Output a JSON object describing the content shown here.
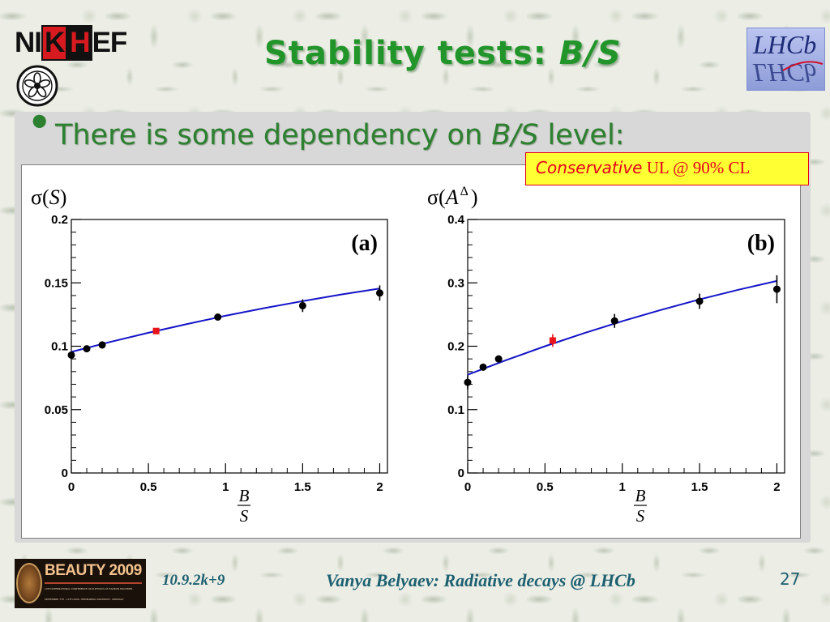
{
  "header": {
    "logo_left": {
      "parts": [
        "NI",
        "K",
        "H",
        "EF"
      ]
    },
    "title": {
      "text": "Stability tests: ",
      "italic": "B/S"
    },
    "logo_right": {
      "text": "LHCb"
    }
  },
  "bullet": {
    "symbol": "•",
    "text": "There is some dependency on ",
    "italic": "B/S",
    "text_end": " level:"
  },
  "note_box": {
    "italic": "Conservative",
    "text": " UL @ 90% CL"
  },
  "chart_data": [
    {
      "type": "scatter",
      "panel_label": "(a)",
      "ylabel": {
        "prefix": "σ(",
        "symbol": "S",
        "suffix": ")"
      },
      "xlabel": {
        "numerator": "B",
        "denominator": "S"
      },
      "xlim": [
        0,
        2.05
      ],
      "ylim": [
        0,
        0.2
      ],
      "xticks": [
        0,
        0.5,
        1,
        1.5,
        2
      ],
      "xtick_labels": [
        "0",
        "0.5",
        "1",
        "1.5",
        "2"
      ],
      "yticks": [
        0,
        0.05,
        0.1,
        0.15,
        0.2
      ],
      "ytick_labels": [
        "0",
        "0.05",
        "0.1",
        "0.15",
        "0.2"
      ],
      "grid": false,
      "legend": "none",
      "series": [
        {
          "marker": "circle",
          "color": "#000000",
          "x": [
            0,
            0.1,
            0.2,
            0.95,
            1.5,
            2
          ],
          "y": [
            0.093,
            0.098,
            0.101,
            0.123,
            0.132,
            0.142
          ],
          "yerr": [
            0.002,
            0.002,
            0.002,
            0.002,
            0.005,
            0.006
          ]
        },
        {
          "marker": "square",
          "color": "#e8141a",
          "x": [
            0.55
          ],
          "y": [
            0.112
          ],
          "yerr": [
            0.002
          ]
        }
      ],
      "fit": {
        "color": "#1414c8",
        "x": [
          0,
          0.25,
          0.5,
          0.75,
          1,
          1.25,
          1.5,
          1.75,
          2
        ],
        "y": [
          0.0955,
          0.1033,
          0.1106,
          0.1175,
          0.124,
          0.13,
          0.1356,
          0.1408,
          0.1455
        ]
      }
    },
    {
      "type": "scatter",
      "panel_label": "(b)",
      "ylabel": {
        "prefix": "σ(",
        "symbol": "A",
        "superscript": "Δ",
        "suffix": ")"
      },
      "xlabel": {
        "numerator": "B",
        "denominator": "S"
      },
      "xlim": [
        0,
        2.05
      ],
      "ylim": [
        0,
        0.4
      ],
      "xticks": [
        0,
        0.5,
        1,
        1.5,
        2
      ],
      "xtick_labels": [
        "0",
        "0.5",
        "1",
        "1.5",
        "2"
      ],
      "yticks": [
        0,
        0.1,
        0.2,
        0.3,
        0.4
      ],
      "ytick_labels": [
        "0",
        "0.1",
        "0.2",
        "0.3",
        "0.4"
      ],
      "grid": false,
      "legend": "none",
      "series": [
        {
          "marker": "circle",
          "color": "#000000",
          "x": [
            0,
            0.1,
            0.2,
            0.95,
            1.5,
            2
          ],
          "y": [
            0.143,
            0.167,
            0.18,
            0.24,
            0.271,
            0.29
          ],
          "yerr": [
            0.011,
            0.005,
            0.005,
            0.011,
            0.012,
            0.022
          ]
        },
        {
          "marker": "square",
          "color": "#e8141a",
          "x": [
            0.55
          ],
          "y": [
            0.209
          ],
          "yerr": [
            0.01
          ]
        }
      ],
      "fit": {
        "color": "#1414c8",
        "x": [
          0,
          0.25,
          0.5,
          0.75,
          1,
          1.25,
          1.5,
          1.75,
          2
        ],
        "y": [
          0.155,
          0.1781,
          0.2,
          0.2203,
          0.2395,
          0.2573,
          0.2739,
          0.2891,
          0.303
        ]
      }
    }
  ],
  "footer": {
    "conference_logo": {
      "title": "BEAUTY 2009",
      "line1": "12TH INTERNATIONAL CONFERENCE ON B-PHYSICS AT HADRON MACHINES",
      "line2": "SEPTEMBER 7TH - 11TH 2009, HEIDELBERG UNIVERSITY, GERMANY"
    },
    "date": "10.9.2k+9",
    "talk": "Vanya Belyaev: Radiative decays @ LHCb",
    "page_number": "27"
  },
  "colors": {
    "title_green": "#22952a",
    "bullet_green": "#2d8030",
    "note_red": "#e4001b",
    "note_bg": "#ffff33",
    "footer_text": "#1d6070",
    "fit_blue": "#1414c8",
    "highlight_red": "#e8141a"
  }
}
